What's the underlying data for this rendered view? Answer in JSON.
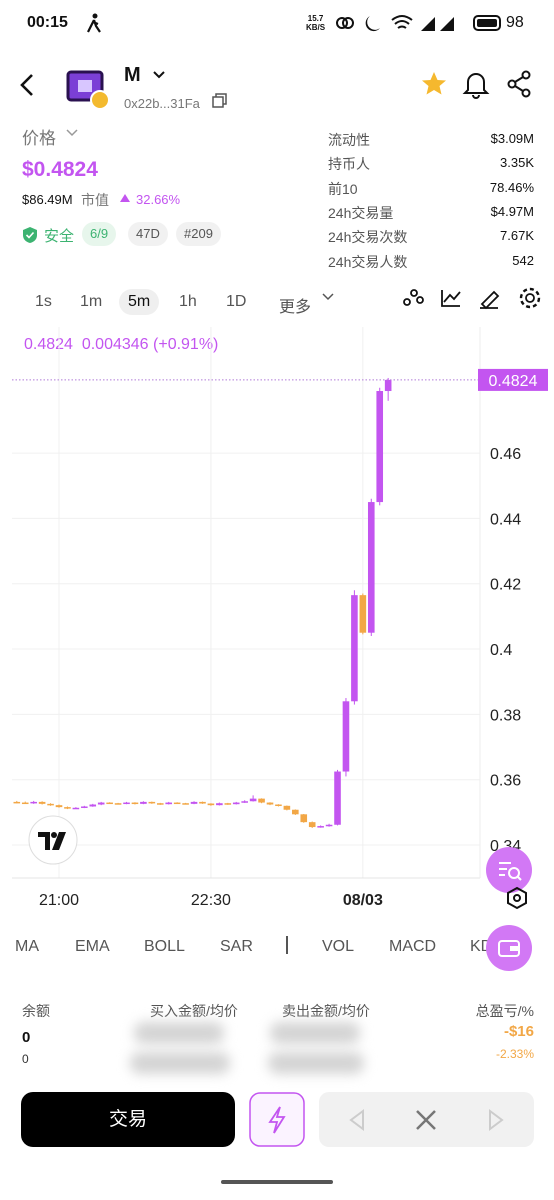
{
  "status_bar": {
    "time": "00:15",
    "net_speed": "15.7",
    "net_unit": "KB/S",
    "battery": "98"
  },
  "token": {
    "name": "M",
    "address": "0x22b...31Fa"
  },
  "price_info": {
    "label": "价格",
    "price": "$0.4824",
    "market_cap": "$86.49M",
    "market_cap_label": "市值",
    "change": "32.66%",
    "safety": "安全",
    "safety_score": "6/9",
    "age": "47D",
    "rank": "#209"
  },
  "stats": [
    {
      "label": "流动性",
      "value": "$3.09M"
    },
    {
      "label": "持币人",
      "value": "3.35K"
    },
    {
      "label": "前10",
      "value": "78.46%"
    },
    {
      "label": "24h交易量",
      "value": "$4.97M"
    },
    {
      "label": "24h交易次数",
      "value": "7.67K"
    },
    {
      "label": "24h交易人数",
      "value": "542"
    }
  ],
  "timeframes": {
    "items": [
      "1s",
      "1m",
      "5m",
      "1h",
      "1D",
      "更多"
    ],
    "active": 2
  },
  "chart": {
    "type": "candlestick",
    "header": {
      "price": "0.4824",
      "change": "0.004346",
      "change_pct": "(+0.91%)"
    },
    "categories": [
      null,
      null,
      null,
      null,
      null,
      "21:00",
      null,
      null,
      null,
      null,
      null,
      null,
      null,
      null,
      null,
      null,
      null,
      null,
      null,
      null,
      null,
      null,
      null,
      "22:30",
      null,
      null,
      null,
      null,
      null,
      null,
      null,
      null,
      null,
      null,
      null,
      null,
      null,
      null,
      null,
      null,
      null,
      "08/03",
      null,
      null,
      null
    ],
    "open": [
      0.3532,
      0.353,
      0.3528,
      0.3532,
      0.3526,
      0.3522,
      0.3516,
      0.3512,
      0.3514,
      0.3518,
      0.3524,
      0.353,
      0.3528,
      0.3526,
      0.353,
      0.3526,
      0.3532,
      0.3528,
      0.3525,
      0.353,
      0.3528,
      0.3526,
      0.3532,
      0.3527,
      0.3522,
      0.3528,
      0.3525,
      0.353,
      0.3534,
      0.3542,
      0.353,
      0.3524,
      0.352,
      0.3508,
      0.3494,
      0.347,
      0.3455,
      0.3458,
      0.3462,
      0.3625,
      0.384,
      0.4165,
      0.405,
      0.445,
      0.479
    ],
    "high": [
      0.3535,
      0.3533,
      0.3535,
      0.3534,
      0.3528,
      0.3524,
      0.3518,
      0.3516,
      0.352,
      0.3526,
      0.3532,
      0.3531,
      0.3529,
      0.3532,
      0.3531,
      0.3534,
      0.3533,
      0.3529,
      0.3532,
      0.3531,
      0.3529,
      0.3534,
      0.3533,
      0.3528,
      0.353,
      0.3529,
      0.3532,
      0.3537,
      0.3552,
      0.3543,
      0.3531,
      0.3525,
      0.3521,
      0.3509,
      0.3495,
      0.3472,
      0.346,
      0.3465,
      0.363,
      0.385,
      0.418,
      0.417,
      0.446,
      0.48,
      0.483
    ],
    "low": [
      0.3528,
      0.3526,
      0.3526,
      0.3524,
      0.352,
      0.3514,
      0.351,
      0.3511,
      0.3513,
      0.3517,
      0.3522,
      0.3526,
      0.3524,
      0.3525,
      0.3524,
      0.3525,
      0.3526,
      0.3523,
      0.3524,
      0.3526,
      0.3524,
      0.3525,
      0.3526,
      0.352,
      0.3521,
      0.3523,
      0.3524,
      0.3529,
      0.3533,
      0.3528,
      0.3522,
      0.3518,
      0.3506,
      0.3492,
      0.3468,
      0.3452,
      0.3453,
      0.3456,
      0.346,
      0.361,
      0.383,
      0.4045,
      0.404,
      0.444,
      0.476
    ],
    "close": [
      0.353,
      0.3528,
      0.3532,
      0.3526,
      0.3522,
      0.3516,
      0.3512,
      0.3514,
      0.3518,
      0.3524,
      0.353,
      0.3528,
      0.3526,
      0.353,
      0.3526,
      0.3532,
      0.3528,
      0.3525,
      0.353,
      0.3528,
      0.3526,
      0.3532,
      0.3527,
      0.3522,
      0.3528,
      0.3525,
      0.353,
      0.3534,
      0.3542,
      0.353,
      0.3524,
      0.352,
      0.3508,
      0.3494,
      0.347,
      0.3455,
      0.3458,
      0.3462,
      0.3625,
      0.384,
      0.4165,
      0.405,
      0.445,
      0.479,
      0.4824
    ],
    "up_color": "#c355f0",
    "down_color": "#f2a746",
    "ylim": [
      0.3299,
      0.4986
    ],
    "yticks": [
      0.34,
      0.36,
      0.38,
      0.4,
      0.42,
      0.44,
      0.46
    ],
    "last_price": {
      "value": 0.4824,
      "label": "0.4824"
    },
    "grid": true
  },
  "indicators": [
    "MA",
    "EMA",
    "BOLL",
    "SAR",
    "VOL",
    "MACD",
    "KD"
  ],
  "positions": {
    "headers": [
      "余额",
      "买入金额/均价",
      "卖出金额/均价",
      "总盈亏/%"
    ],
    "balance": "0",
    "balance_sub": "0",
    "pnl": "-$16",
    "pnl_pct": "-2.33%"
  },
  "actions": {
    "trade": "交易"
  }
}
